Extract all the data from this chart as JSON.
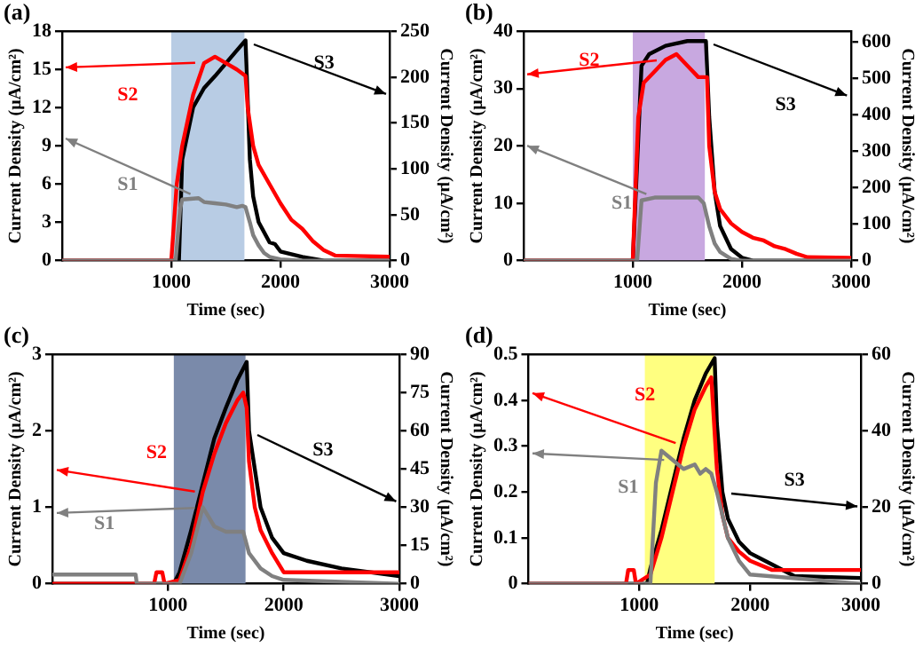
{
  "chart_data": [
    {
      "type": "line",
      "title": "(a)",
      "xlabel": "Time (sec)",
      "ylabel": "Current Density (μA/cm²)",
      "y2label": "Current Density (μA/cm²)",
      "xlim": [
        0,
        3000
      ],
      "xticks": [
        1000,
        2000,
        3000
      ],
      "ylim": [
        0,
        18
      ],
      "yticks": [
        0,
        3,
        6,
        9,
        12,
        15,
        18
      ],
      "y2lim": [
        0,
        250
      ],
      "y2ticks": [
        0,
        50,
        100,
        150,
        200,
        250
      ],
      "bands": [
        {
          "axis": "x",
          "from": 1000,
          "to": 1670,
          "color": "#b8cce4"
        }
      ],
      "series": [
        {
          "name": "S1",
          "color": "#808080",
          "x": [
            0,
            1040,
            1080,
            1100,
            1250,
            1300,
            1400,
            1500,
            1600,
            1650,
            1680,
            1720,
            1750,
            1800,
            1850,
            1900,
            2000,
            2200,
            3000
          ],
          "values": [
            0,
            0,
            4,
            4.8,
            4.9,
            4.6,
            4.5,
            4.4,
            4.2,
            4.3,
            4.2,
            3,
            2,
            1.2,
            0.6,
            0.3,
            0.1,
            0,
            0
          ]
        },
        {
          "name": "S2",
          "color": "#ff0000",
          "x": [
            0,
            1000,
            1050,
            1100,
            1150,
            1200,
            1300,
            1400,
            1500,
            1600,
            1680,
            1700,
            1750,
            1800,
            1900,
            2000,
            2100,
            2200,
            2300,
            2400,
            2500,
            3000
          ],
          "values": [
            0,
            0,
            6,
            9,
            11,
            13,
            15.5,
            16,
            15.5,
            15,
            14.5,
            12,
            9,
            7.5,
            6,
            4.5,
            3.2,
            2.5,
            1.5,
            0.8,
            0.4,
            0.3
          ]
        },
        {
          "name": "S3",
          "color": "#000000",
          "axis": "y2",
          "x": [
            0,
            1070,
            1100,
            1200,
            1300,
            1400,
            1500,
            1600,
            1680,
            1720,
            1750,
            1800,
            1900,
            1950,
            2000,
            2100,
            2200,
            2400,
            3000
          ],
          "values": [
            0,
            0,
            110,
            167,
            188,
            201,
            215,
            229,
            240,
            110,
            70,
            42,
            20,
            18,
            10,
            7,
            4,
            0,
            0
          ]
        }
      ]
    },
    {
      "type": "line",
      "title": "(b)",
      "xlabel": "Time (sec)",
      "ylabel": "Current Density (μA/cm²)",
      "y2label": "Current Density (μA/cm²)",
      "xlim": [
        0,
        3000
      ],
      "xticks": [
        1000,
        2000,
        3000
      ],
      "ylim": [
        0,
        40
      ],
      "yticks": [
        0,
        10,
        20,
        30,
        40
      ],
      "y2lim": [
        0,
        630
      ],
      "y2ticks": [
        0,
        100,
        200,
        300,
        400,
        500,
        600
      ],
      "bands": [
        {
          "axis": "x",
          "from": 1000,
          "to": 1660,
          "color": "#c8a8e0"
        }
      ],
      "series": [
        {
          "name": "S1",
          "color": "#808080",
          "x": [
            0,
            1040,
            1080,
            1200,
            1400,
            1600,
            1650,
            1700,
            1750,
            1800,
            1900,
            2000,
            3000
          ],
          "values": [
            0,
            0,
            10.5,
            11,
            11,
            11,
            10,
            6,
            3,
            1.5,
            0.3,
            0,
            0
          ]
        },
        {
          "name": "S2",
          "color": "#ff0000",
          "x": [
            0,
            1000,
            1050,
            1100,
            1200,
            1300,
            1400,
            1500,
            1600,
            1680,
            1700,
            1750,
            1800,
            1900,
            2000,
            2100,
            2200,
            2300,
            2400,
            2500,
            2600,
            3000
          ],
          "values": [
            0,
            0,
            25,
            31,
            33,
            35,
            36,
            34,
            32,
            32,
            20,
            12,
            9,
            6.5,
            5,
            4,
            3.5,
            2.5,
            2,
            1.2,
            0.6,
            0.5
          ]
        },
        {
          "name": "S3",
          "color": "#000000",
          "axis": "y2",
          "x": [
            0,
            1000,
            1080,
            1150,
            1300,
            1500,
            1670,
            1700,
            1750,
            1800,
            1900,
            2000,
            2100,
            3000
          ],
          "values": [
            0,
            0,
            535,
            567,
            590,
            603,
            603,
            394,
            190,
            95,
            32,
            8,
            0,
            0
          ]
        }
      ]
    },
    {
      "type": "line",
      "title": "(c)",
      "xlabel": "Time (sec)",
      "ylabel": "Current Density (μA/cm²)",
      "y2label": "Current Density (μA/cm²)",
      "xlim": [
        0,
        3000
      ],
      "xticks": [
        1000,
        2000,
        3000
      ],
      "ylim": [
        0,
        3
      ],
      "yticks": [
        0,
        1,
        2,
        3
      ],
      "y2lim": [
        0,
        90
      ],
      "y2ticks": [
        0,
        15,
        30,
        45,
        60,
        75,
        90
      ],
      "bands": [
        {
          "axis": "x",
          "from": 1050,
          "to": 1670,
          "color": "#7a8aaa"
        }
      ],
      "series": [
        {
          "name": "S1",
          "color": "#808080",
          "x": [
            0,
            720,
            730,
            1100,
            1200,
            1300,
            1400,
            1500,
            1650,
            1700,
            1800,
            1900,
            2000,
            3000
          ],
          "values": [
            0.12,
            0.12,
            0,
            0,
            0.4,
            1.0,
            0.75,
            0.68,
            0.68,
            0.4,
            0.2,
            0.1,
            0.05,
            0
          ]
        },
        {
          "name": "S2",
          "color": "#ff0000",
          "x": [
            0,
            880,
            900,
            950,
            970,
            1100,
            1200,
            1300,
            1400,
            1500,
            1600,
            1650,
            1680,
            1700,
            1750,
            1800,
            1900,
            2000,
            2100,
            3000
          ],
          "values": [
            0,
            0,
            0.15,
            0.15,
            0,
            0.05,
            0.5,
            1.2,
            1.7,
            2.1,
            2.4,
            2.5,
            2.3,
            1.6,
            1.0,
            0.7,
            0.4,
            0.15,
            0.15,
            0.15
          ]
        },
        {
          "name": "S3",
          "color": "#000000",
          "axis": "y2",
          "x": [
            0,
            1050,
            1100,
            1200,
            1300,
            1400,
            1500,
            1600,
            1680,
            1700,
            1750,
            1800,
            1900,
            2000,
            2200,
            2500,
            3000
          ],
          "values": [
            0,
            0,
            4.5,
            21,
            39,
            57,
            69,
            80,
            87,
            60,
            45,
            30,
            18,
            12,
            9,
            6,
            3
          ]
        }
      ]
    },
    {
      "type": "line",
      "title": "(d)",
      "xlabel": "Time (sec)",
      "ylabel": "Current Density (μA/cm²)",
      "y2label": "Current Density (μA/cm²)",
      "xlim": [
        0,
        3000
      ],
      "xticks": [
        1000,
        2000,
        3000
      ],
      "ylim": [
        0,
        0.5
      ],
      "yticks": [
        0,
        0.1,
        0.2,
        0.3,
        0.4,
        0.5
      ],
      "y2lim": [
        0,
        60
      ],
      "y2ticks": [
        0,
        20,
        40,
        60
      ],
      "bands": [
        {
          "axis": "x",
          "from": 1050,
          "to": 1680,
          "color": "#ffff80"
        }
      ],
      "series": [
        {
          "name": "S1",
          "color": "#808080",
          "x": [
            0,
            1100,
            1150,
            1200,
            1300,
            1400,
            1500,
            1550,
            1600,
            1650,
            1700,
            1800,
            1900,
            2000,
            3000
          ],
          "values": [
            0,
            0,
            0.22,
            0.29,
            0.27,
            0.25,
            0.26,
            0.24,
            0.25,
            0.24,
            0.2,
            0.1,
            0.05,
            0.02,
            0
          ]
        },
        {
          "name": "S2",
          "color": "#ff0000",
          "x": [
            0,
            880,
            900,
            950,
            970,
            1100,
            1200,
            1300,
            1400,
            1500,
            1600,
            1650,
            1700,
            1750,
            1800,
            1900,
            2000,
            2200,
            3000
          ],
          "values": [
            0,
            0,
            0.03,
            0.03,
            0,
            0.02,
            0.1,
            0.2,
            0.3,
            0.38,
            0.43,
            0.45,
            0.25,
            0.15,
            0.1,
            0.07,
            0.05,
            0.03,
            0.03
          ]
        },
        {
          "name": "S3",
          "color": "#000000",
          "axis": "y2",
          "x": [
            0,
            1070,
            1100,
            1200,
            1300,
            1400,
            1500,
            1600,
            1680,
            1700,
            1750,
            1800,
            1900,
            2000,
            2200,
            2400,
            3000
          ],
          "values": [
            0,
            0,
            4,
            14,
            26,
            38,
            48,
            55,
            59,
            42,
            24,
            17,
            11,
            8,
            5,
            2,
            1.5
          ]
        }
      ]
    }
  ]
}
